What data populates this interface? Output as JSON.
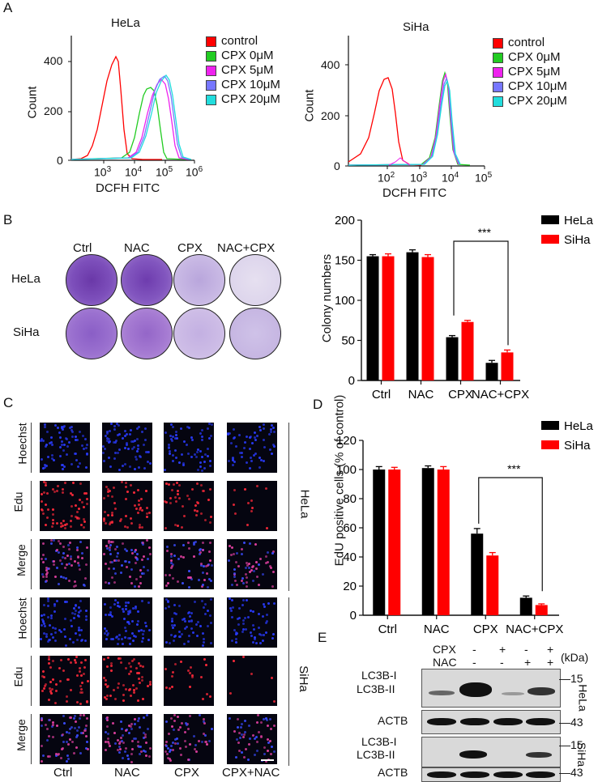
{
  "panels": {
    "a": "A",
    "b": "B",
    "c": "C",
    "d": "D",
    "e": "E"
  },
  "panel_a": {
    "cell_titles": [
      "HeLa",
      "SiHa"
    ],
    "legend": [
      {
        "label": "control",
        "color": "#ff0000"
      },
      {
        "label": "CPX  0μM",
        "color": "#22cc22"
      },
      {
        "label": "CPX  5μM",
        "color": "#ee22ee"
      },
      {
        "label": "CPX  10μM",
        "color": "#7777ff"
      },
      {
        "label": "CPX  20μM",
        "color": "#22dddd"
      }
    ],
    "ylabel": "Count",
    "xlabel": "DCFH FITC",
    "y_ticks": [
      "0",
      "200",
      "400"
    ],
    "hela_x_ticks": [
      {
        "base": "10",
        "exp": "3"
      },
      {
        "base": "10",
        "exp": "4"
      },
      {
        "base": "10",
        "exp": "5"
      },
      {
        "base": "10",
        "exp": "6"
      }
    ],
    "siha_x_ticks": [
      {
        "base": "10",
        "exp": "2"
      },
      {
        "base": "10",
        "exp": "3"
      },
      {
        "base": "10",
        "exp": "4"
      },
      {
        "base": "10",
        "exp": "5"
      }
    ]
  },
  "panel_b": {
    "col_labels": [
      "Ctrl",
      "NAC",
      "CPX",
      "NAC+CPX"
    ],
    "row_labels": [
      "HeLa",
      "SiHa"
    ]
  },
  "panel_c": {
    "row_labels": [
      "Hoechst",
      "Edu",
      "Merge",
      "Hoechst",
      "Edu",
      "Merge"
    ],
    "group_labels": [
      "HeLa",
      "SiHa"
    ],
    "col_labels": [
      "Ctrl",
      "NAC",
      "CPX",
      "CPX+NAC"
    ]
  },
  "panel_e": {
    "header_rows": [
      {
        "label": "CPX",
        "signs": [
          "-",
          "+",
          "-",
          "+"
        ]
      },
      {
        "label": "NAC",
        "signs": [
          "-",
          "-",
          "+",
          "+"
        ]
      }
    ],
    "kda_label": "(kDa)",
    "lc3_labels": [
      "LC3B-I",
      "LC3B-II"
    ],
    "actb_label": "ACTB",
    "markers": [
      "15",
      "43"
    ],
    "cell_labels": [
      "HeLa",
      "SiHa"
    ]
  },
  "chart_data": [
    {
      "id": "colony",
      "type": "bar",
      "title": "",
      "ylabel": "Colony numbers",
      "xlabel": "",
      "categories": [
        "Ctrl",
        "NAC",
        "CPX",
        "NAC+CPX"
      ],
      "series": [
        {
          "name": "HeLa",
          "color": "#000000",
          "values": [
            155,
            160,
            54,
            22
          ],
          "errors": [
            2,
            3,
            2,
            3
          ]
        },
        {
          "name": "SiHa",
          "color": "#ff0000",
          "values": [
            155,
            154,
            73,
            35
          ],
          "errors": [
            3,
            3,
            2,
            3
          ]
        }
      ],
      "ylim": [
        0,
        200
      ],
      "yticks": [
        0,
        50,
        100,
        150,
        200
      ],
      "significance": {
        "label": "***",
        "from": "CPX",
        "to": "NAC+CPX"
      }
    },
    {
      "id": "edu",
      "type": "bar",
      "title": "",
      "ylabel": "EdU positive cells (% of control)",
      "xlabel": "",
      "categories": [
        "Ctrl",
        "NAC",
        "CPX",
        "NAC+CPX"
      ],
      "series": [
        {
          "name": "HeLa",
          "color": "#000000",
          "values": [
            100,
            101,
            56,
            12
          ],
          "errors": [
            2,
            1.5,
            3.5,
            1.2
          ]
        },
        {
          "name": "SiHa",
          "color": "#ff0000",
          "values": [
            100,
            100,
            41,
            7
          ],
          "errors": [
            1.5,
            2,
            2,
            0.8
          ]
        }
      ],
      "ylim": [
        0,
        120
      ],
      "yticks": [
        0,
        20,
        40,
        60,
        80,
        100,
        120
      ],
      "significance": {
        "label": "***",
        "from": "CPX",
        "to": "NAC+CPX"
      }
    }
  ]
}
